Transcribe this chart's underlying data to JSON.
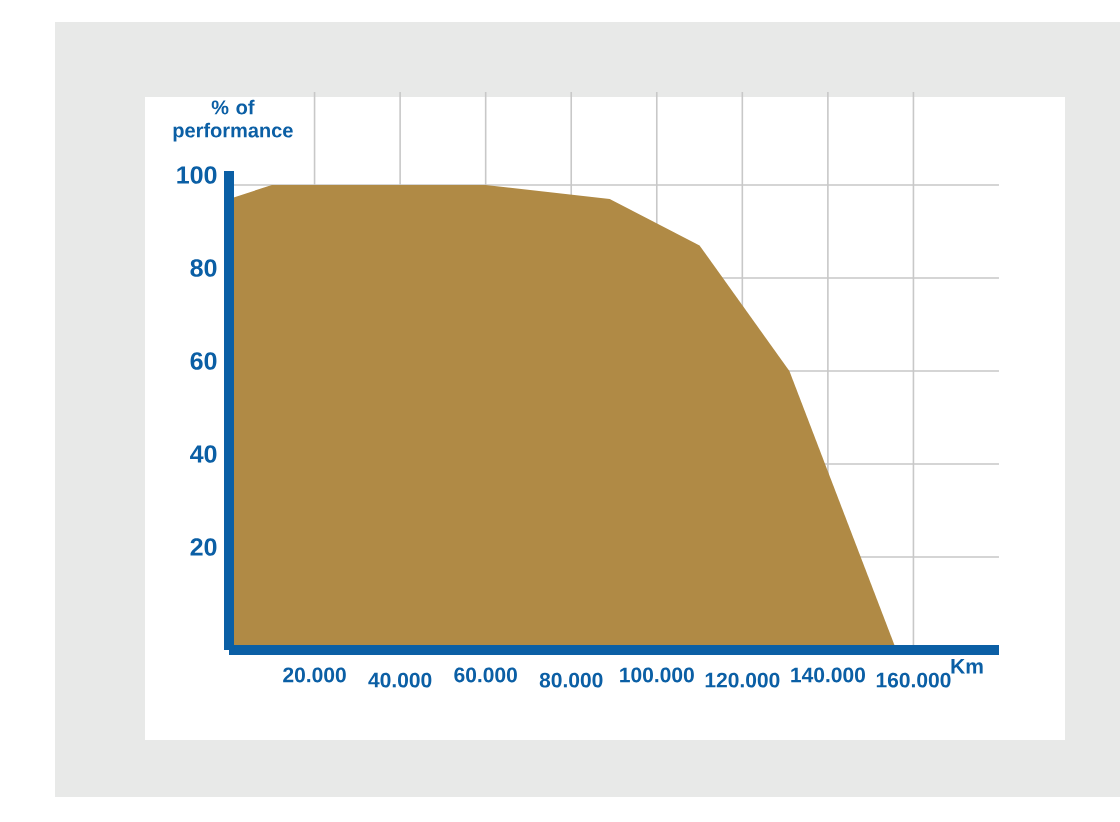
{
  "chart_data": {
    "type": "area",
    "ylabel": "% of performance",
    "xlabel": "Km",
    "x": [
      0,
      10000,
      60000,
      89000,
      110000,
      131000,
      156000
    ],
    "series": [
      {
        "color": "#b08a45",
        "values": [
          97,
          100,
          100,
          97,
          87,
          60,
          0
        ]
      }
    ],
    "xlim": [
      0,
      180000
    ],
    "ylim": [
      0,
      120
    ],
    "xticks": [
      {
        "value": 20000,
        "label": "20.000"
      },
      {
        "value": 40000,
        "label": "40.000"
      },
      {
        "value": 60000,
        "label": "60.000"
      },
      {
        "value": 80000,
        "label": "80.000"
      },
      {
        "value": 100000,
        "label": "100.000"
      },
      {
        "value": 120000,
        "label": "120.000"
      },
      {
        "value": 140000,
        "label": "140.000"
      },
      {
        "value": 160000,
        "label": "160.000"
      }
    ],
    "yticks": [
      20,
      40,
      60,
      80,
      100
    ],
    "grid": true
  }
}
